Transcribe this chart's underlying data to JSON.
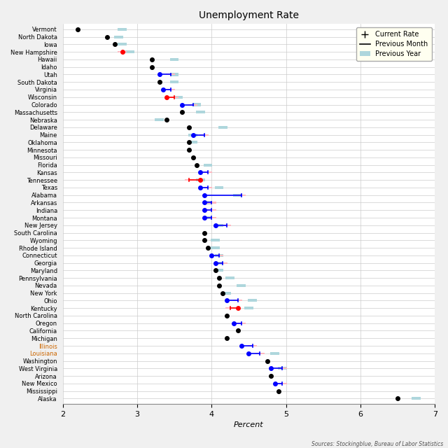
{
  "title": "Unemployment Rate",
  "xlabel": "Percent",
  "source": "Sources: Stockingblue, Bureau of Labor Statistics",
  "xlim": [
    2,
    7
  ],
  "xticks": [
    2,
    3,
    4,
    5,
    6,
    7
  ],
  "states": [
    "Vermont",
    "North Dakota",
    "Iowa",
    "New Hampshire",
    "Hawaii",
    "Idaho",
    "Utah",
    "South Dakota",
    "Virginia",
    "Wisconsin",
    "Colorado",
    "Massachusetts",
    "Nebraska",
    "Delaware",
    "Maine",
    "Oklahoma",
    "Minnesota",
    "Missouri",
    "Florida",
    "Kansas",
    "Tennessee",
    "Texas",
    "Alabama",
    "Arkansas",
    "Indiana",
    "Montana",
    "New Jersey",
    "South Carolina",
    "Wyoming",
    "Rhode Island",
    "Connecticut",
    "Georgia",
    "Maryland",
    "Pennsylvania",
    "Nevada",
    "New York",
    "Ohio",
    "Kentucky",
    "North Carolina",
    "Oregon",
    "California",
    "Michigan",
    "Illinois",
    "Louisiana",
    "Washington",
    "West Virginia",
    "Arizona",
    "New Mexico",
    "Mississippi",
    "Alaska"
  ],
  "current": [
    2.2,
    2.6,
    2.7,
    2.8,
    3.2,
    3.2,
    3.3,
    3.3,
    3.35,
    3.4,
    3.6,
    3.6,
    3.4,
    3.7,
    3.75,
    3.7,
    3.7,
    3.75,
    3.8,
    3.85,
    3.85,
    3.85,
    3.9,
    3.9,
    3.9,
    3.9,
    4.05,
    3.9,
    3.9,
    3.95,
    4.0,
    4.05,
    4.05,
    4.1,
    4.1,
    4.15,
    4.2,
    4.35,
    4.2,
    4.3,
    4.35,
    4.2,
    4.4,
    4.5,
    4.75,
    4.8,
    4.8,
    4.85,
    4.9,
    6.5
  ],
  "prev_month": [
    null,
    null,
    null,
    2.8,
    null,
    null,
    3.45,
    null,
    3.45,
    3.5,
    3.75,
    null,
    null,
    null,
    3.9,
    null,
    null,
    null,
    null,
    3.95,
    3.7,
    3.95,
    4.4,
    4.0,
    4.0,
    4.0,
    4.2,
    null,
    null,
    null,
    4.1,
    4.15,
    null,
    null,
    null,
    null,
    4.35,
    4.25,
    null,
    4.4,
    null,
    null,
    4.55,
    4.65,
    null,
    4.95,
    null,
    4.95,
    null,
    null
  ],
  "prev_year": [
    2.8,
    2.75,
    2.8,
    2.9,
    3.5,
    null,
    3.5,
    3.5,
    null,
    3.55,
    3.8,
    3.85,
    3.3,
    4.15,
    3.75,
    3.75,
    null,
    null,
    3.95,
    null,
    3.85,
    4.1,
    4.35,
    3.95,
    null,
    3.95,
    4.1,
    null,
    4.05,
    4.05,
    4.1,
    4.1,
    4.1,
    4.25,
    4.4,
    4.2,
    4.55,
    4.5,
    null,
    null,
    null,
    null,
    null,
    4.85,
    null,
    4.95,
    null,
    null,
    null,
    6.75
  ],
  "dot_colors": [
    "black",
    "black",
    "black",
    "red",
    "black",
    "black",
    "blue",
    "black",
    "blue",
    "red",
    "blue",
    "black",
    "black",
    "black",
    "blue",
    "black",
    "black",
    "black",
    "black",
    "blue",
    "red",
    "blue",
    "blue",
    "blue",
    "blue",
    "blue",
    "blue",
    "black",
    "black",
    "black",
    "blue",
    "blue",
    "black",
    "black",
    "black",
    "black",
    "blue",
    "red",
    "black",
    "blue",
    "black",
    "black",
    "blue",
    "blue",
    "black",
    "blue",
    "black",
    "blue",
    "black",
    "black"
  ],
  "highlight_states": [
    "Illinois",
    "Louisiana"
  ],
  "highlight_color": "#cc6600",
  "prev_year_color": "#aed6dc",
  "prev_month_bar_color": "#ffb8c0",
  "grid_color": "#cccccc",
  "bg_color": "#f0f0f0",
  "plot_bg": "#ffffff",
  "legend_bg": "#fffff0"
}
